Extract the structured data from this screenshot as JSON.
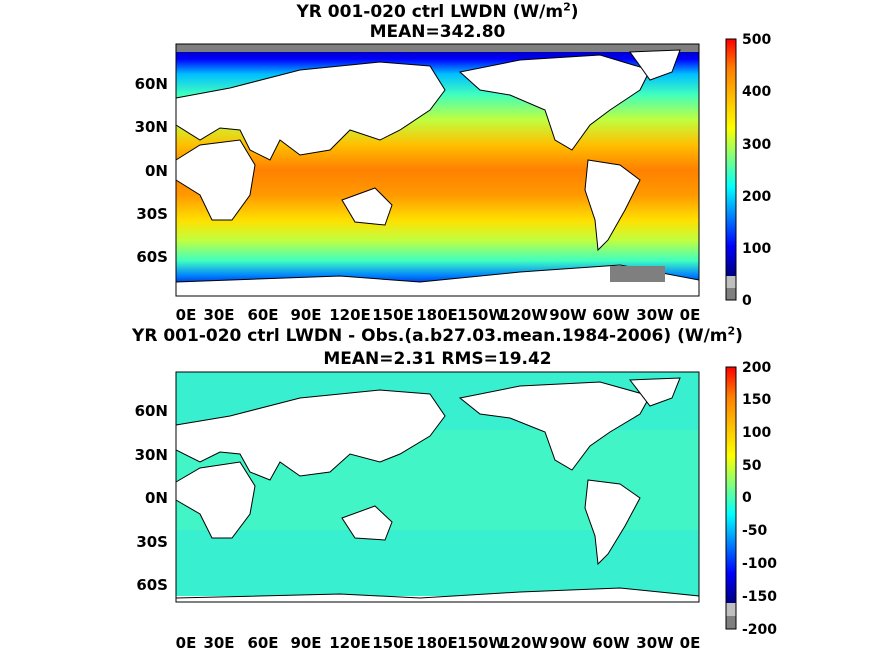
{
  "panels": [
    {
      "title_prefix": "YR 001-020 ctrl LWDN (W/m",
      "title_sup": "2",
      "title_suffix": ")",
      "stats": "MEAN=342.80",
      "colorbar": {
        "ticks": [
          "0",
          "100",
          "200",
          "300",
          "400",
          "500"
        ],
        "range": [
          0,
          500
        ]
      }
    },
    {
      "title_prefix": "YR 001-020 ctrl LWDN - Obs.(a.b27.03.mean.1984-2006) (W/m",
      "title_sup": "2",
      "title_suffix": ")",
      "stats": "MEAN=2.31 RMS=19.42",
      "colorbar": {
        "ticks": [
          "-200",
          "-150",
          "-100",
          "-50",
          "0",
          "50",
          "100",
          "150",
          "200"
        ],
        "range": [
          -200,
          200
        ]
      }
    }
  ],
  "lon_ticks": [
    "0E",
    "30E",
    "60E",
    "90E",
    "120E",
    "150E",
    "180E",
    "150W",
    "120W",
    "90W",
    "60W",
    "30W",
    "0E"
  ],
  "lat_ticks": [
    "60N",
    "30N",
    "0N",
    "30S",
    "60S"
  ],
  "colors": {
    "colormap": [
      "#00007f",
      "#0000ff",
      "#007fff",
      "#00ffff",
      "#7fff7f",
      "#ffff00",
      "#ff7f00",
      "#ff0000",
      "#7f0000"
    ],
    "land": "#ffffff",
    "missing": "#7f7f7f",
    "missing_light": "#bfbfbf",
    "diff_ocean": "#38f0d0"
  }
}
